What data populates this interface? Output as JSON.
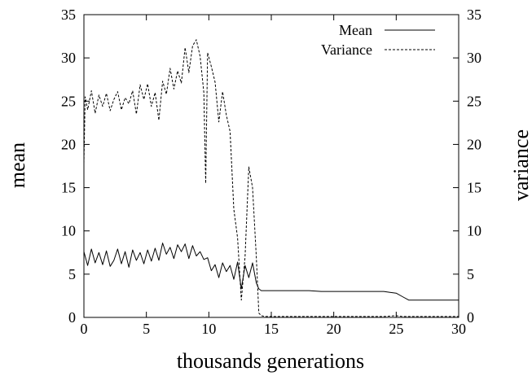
{
  "chart_data": {
    "type": "line",
    "title": "",
    "xlabel": "thousands generations",
    "ylabel": "mean",
    "y2label": "variance",
    "xlim": [
      0,
      30
    ],
    "ylim": [
      0,
      35
    ],
    "y2lim": [
      0,
      35
    ],
    "xticks": [
      "0",
      "5",
      "10",
      "15",
      "20",
      "25",
      "30"
    ],
    "yticks": [
      "0",
      "5",
      "10",
      "15",
      "20",
      "25",
      "30",
      "35"
    ],
    "y2ticks": [
      "0",
      "5",
      "10",
      "15",
      "20",
      "25",
      "30",
      "35"
    ],
    "grid": false,
    "legend": "top-right",
    "series": [
      {
        "name": "Mean",
        "style": "solid",
        "color": "#000000",
        "x": [
          0,
          0.3,
          0.6,
          0.9,
          1.2,
          1.5,
          1.8,
          2.1,
          2.4,
          2.7,
          3.0,
          3.3,
          3.6,
          3.9,
          4.2,
          4.5,
          4.8,
          5.1,
          5.4,
          5.7,
          6.0,
          6.3,
          6.6,
          6.9,
          7.2,
          7.5,
          7.8,
          8.1,
          8.4,
          8.7,
          9.0,
          9.3,
          9.6,
          9.9,
          10.2,
          10.5,
          10.8,
          11.1,
          11.4,
          11.7,
          12.0,
          12.3,
          12.6,
          12.9,
          13.2,
          13.5,
          13.8,
          14.0,
          14.2,
          15,
          16,
          17,
          18,
          19,
          20,
          21,
          22,
          23,
          24,
          24.5,
          25.0,
          25.5,
          26.0,
          27,
          28,
          29,
          30
        ],
        "y": [
          7.6,
          6.0,
          7.9,
          6.3,
          7.5,
          6.1,
          7.7,
          5.9,
          6.6,
          7.9,
          6.2,
          7.6,
          5.8,
          7.8,
          6.6,
          7.5,
          6.2,
          7.8,
          6.5,
          8.0,
          6.6,
          8.6,
          7.3,
          8.1,
          6.8,
          8.4,
          7.6,
          8.5,
          6.8,
          8.3,
          7.1,
          7.6,
          6.7,
          6.9,
          5.4,
          6.1,
          4.6,
          6.3,
          5.3,
          6.0,
          4.4,
          6.4,
          3.3,
          6.0,
          4.6,
          6.3,
          4.0,
          3.3,
          3.1,
          3.1,
          3.1,
          3.1,
          3.1,
          3.0,
          3.0,
          3.0,
          3.0,
          3.0,
          3.0,
          2.9,
          2.8,
          2.4,
          2.0,
          2.0,
          2.0,
          2.0,
          2.0
        ]
      },
      {
        "name": "Variance",
        "style": "dashed",
        "color": "#000000",
        "x": [
          0,
          0.1,
          0.3,
          0.6,
          0.9,
          1.2,
          1.5,
          1.8,
          2.1,
          2.4,
          2.7,
          3.0,
          3.3,
          3.6,
          3.9,
          4.2,
          4.5,
          4.8,
          5.1,
          5.4,
          5.7,
          6.0,
          6.3,
          6.6,
          6.9,
          7.2,
          7.5,
          7.8,
          8.1,
          8.4,
          8.7,
          9.0,
          9.3,
          9.6,
          9.75,
          9.9,
          10.2,
          10.5,
          10.8,
          11.1,
          11.4,
          11.7,
          12.0,
          12.3,
          12.6,
          12.9,
          13.2,
          13.5,
          13.8,
          14.0,
          14.2,
          14.5,
          15,
          16,
          17,
          18,
          19,
          20,
          21,
          22,
          23,
          24,
          25.0,
          25.5,
          26.0,
          27,
          28,
          29,
          30
        ],
        "y": [
          17.8,
          25.5,
          24.0,
          26.2,
          23.6,
          25.7,
          24.4,
          25.9,
          23.9,
          25.2,
          26.1,
          24.0,
          25.4,
          24.7,
          26.2,
          23.5,
          26.9,
          25.2,
          27.0,
          24.4,
          26.0,
          22.8,
          27.3,
          25.8,
          28.8,
          26.4,
          28.5,
          27.1,
          31.2,
          28.3,
          31.4,
          32.1,
          30.2,
          26.0,
          15.5,
          30.6,
          29.0,
          27.2,
          22.6,
          26.1,
          23.4,
          21.5,
          12.5,
          9.2,
          2.0,
          7.0,
          17.4,
          15.0,
          7.0,
          0.5,
          0.2,
          0.1,
          0.1,
          0.1,
          0.1,
          0.1,
          0.1,
          0.1,
          0.1,
          0.1,
          0.1,
          0.1,
          0.2,
          0.1,
          0.1,
          0.1,
          0.1,
          0.1,
          0.1
        ]
      }
    ]
  }
}
